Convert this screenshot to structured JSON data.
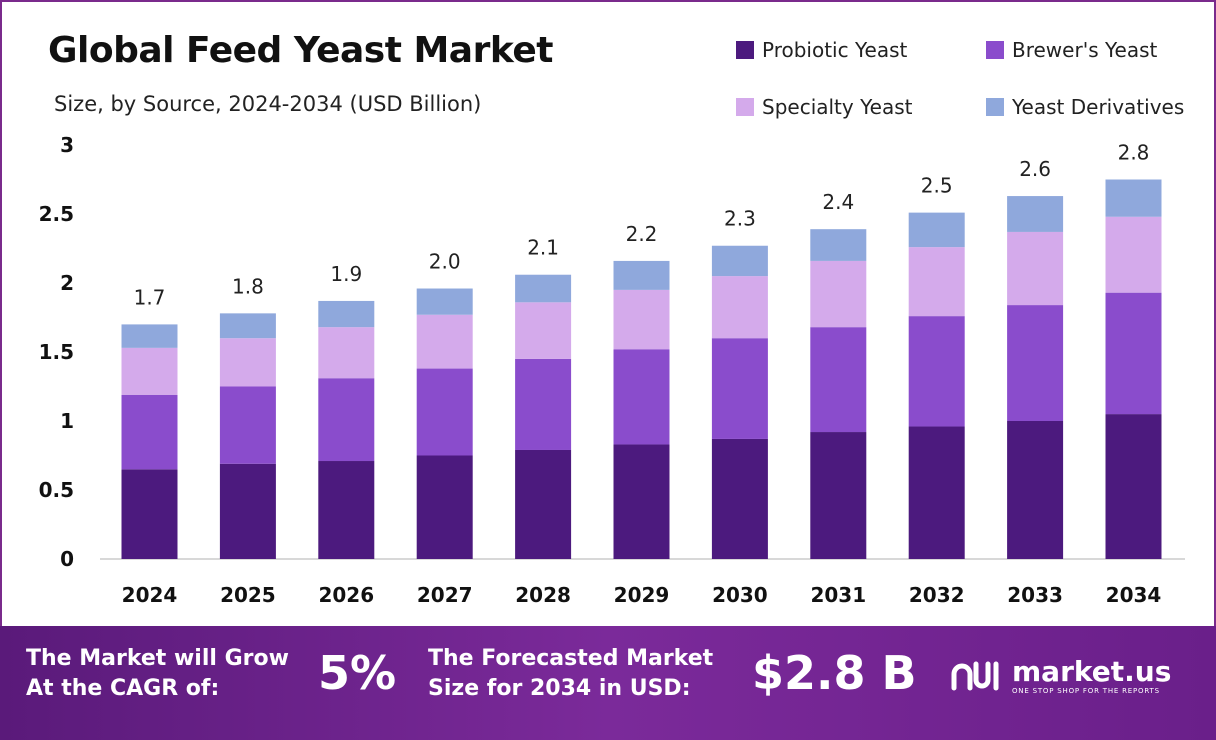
{
  "colors": {
    "probiotic": "#4c1a7e",
    "brewers": "#8a4ccc",
    "specialty": "#d4aaeb",
    "derivatives": "#8fa8dc",
    "border": "#7a2a8c",
    "footer": "#6a1f8a"
  },
  "chart_data": {
    "type": "bar",
    "stacked": true,
    "title": "Global Feed Yeast Market",
    "subtitle": "Size, by Source, 2024-2034 (USD Billion)",
    "categories": [
      "2024",
      "2025",
      "2026",
      "2027",
      "2028",
      "2029",
      "2030",
      "2031",
      "2032",
      "2033",
      "2034"
    ],
    "series": [
      {
        "name": "Probiotic Yeast",
        "color": "#4c1a7e",
        "values": [
          0.65,
          0.69,
          0.71,
          0.75,
          0.79,
          0.83,
          0.87,
          0.92,
          0.96,
          1.0,
          1.05
        ]
      },
      {
        "name": "Brewer's Yeast",
        "color": "#8a4ccc",
        "values": [
          0.54,
          0.56,
          0.6,
          0.63,
          0.66,
          0.69,
          0.73,
          0.76,
          0.8,
          0.84,
          0.88
        ]
      },
      {
        "name": "Specialty Yeast",
        "color": "#d4aaeb",
        "values": [
          0.34,
          0.35,
          0.37,
          0.39,
          0.41,
          0.43,
          0.45,
          0.48,
          0.5,
          0.53,
          0.55
        ]
      },
      {
        "name": "Yeast Derivatives",
        "color": "#8fa8dc",
        "values": [
          0.17,
          0.18,
          0.19,
          0.19,
          0.2,
          0.21,
          0.22,
          0.23,
          0.25,
          0.26,
          0.27
        ]
      }
    ],
    "totals": [
      "1.7",
      "1.8",
      "1.9",
      "2.0",
      "2.1",
      "2.2",
      "2.3",
      "2.4",
      "2.5",
      "2.6",
      "2.8"
    ],
    "y_ticks": [
      "0",
      "0.5",
      "1",
      "1.5",
      "2",
      "2.5",
      "3"
    ],
    "ylim": [
      0,
      3
    ],
    "grid": false,
    "legend_position": "top-right"
  },
  "footer": {
    "cagr_label": "The Market will Grow\nAt the CAGR of:",
    "cagr_value": "5%",
    "forecast_label": "The Forecasted Market\nSize for 2034 in USD:",
    "forecast_value": "$2.8 B"
  },
  "logo": {
    "name": "market.us",
    "tagline": "ONE STOP SHOP FOR THE REPORTS"
  }
}
